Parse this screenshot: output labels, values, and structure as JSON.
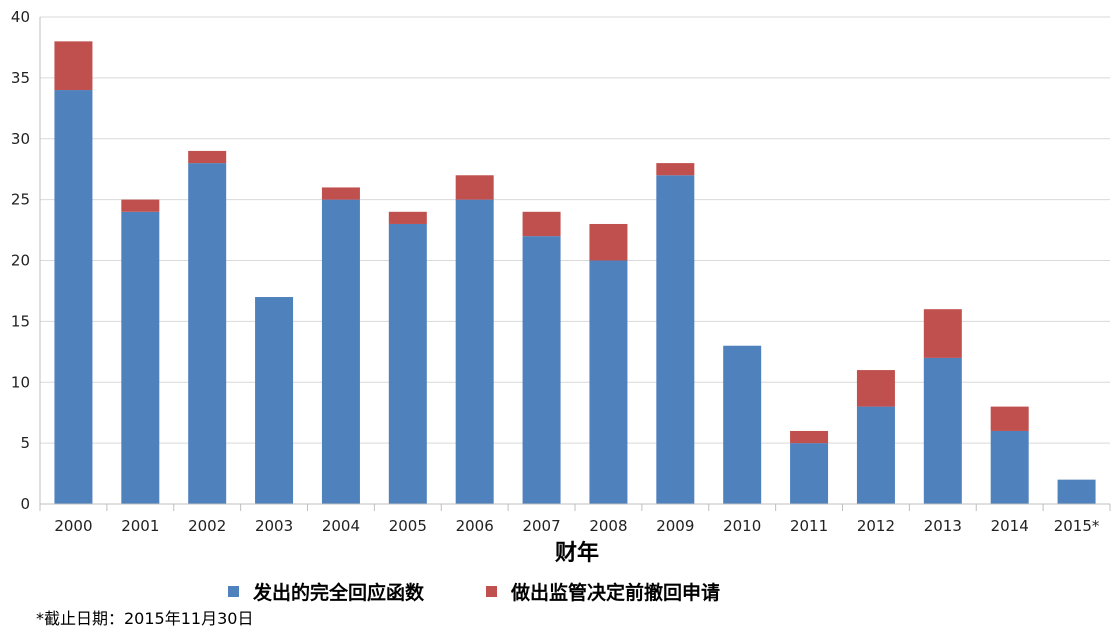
{
  "chart_data": {
    "type": "bar",
    "stacked": true,
    "categories": [
      "2000",
      "2001",
      "2002",
      "2003",
      "2004",
      "2005",
      "2006",
      "2007",
      "2008",
      "2009",
      "2010",
      "2011",
      "2012",
      "2013",
      "2014",
      "2015*"
    ],
    "series": [
      {
        "name": "发出的完全回应函数",
        "color": "#4F81BD",
        "values": [
          34,
          24,
          28,
          17,
          25,
          23,
          25,
          22,
          20,
          27,
          13,
          5,
          8,
          12,
          6,
          2
        ]
      },
      {
        "name": "做出监管决定前撤回申请",
        "color": "#C0504D",
        "values": [
          4,
          1,
          1,
          0,
          1,
          1,
          2,
          2,
          3,
          1,
          0,
          1,
          3,
          4,
          2,
          0
        ]
      }
    ],
    "xlabel": "财年",
    "ylabel": "",
    "ylim": [
      0,
      40
    ],
    "yticks": [
      0,
      5,
      10,
      15,
      20,
      25,
      30,
      35,
      40
    ],
    "grid": true,
    "legend_position": "bottom"
  },
  "footnote": "*截止日期：2015年11月30日",
  "colors": {
    "grid": "#D9D9D9",
    "axis": "#BFBFBF"
  }
}
